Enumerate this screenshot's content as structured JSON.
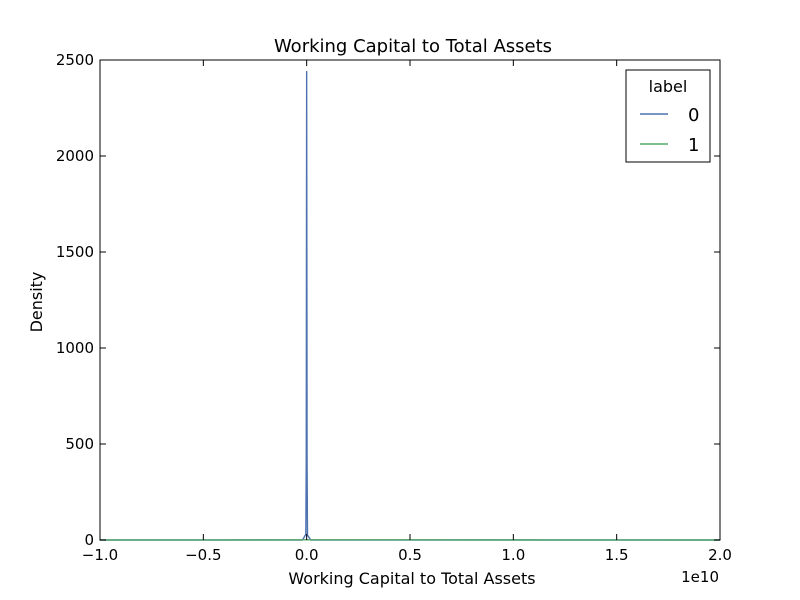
{
  "chart_data": {
    "type": "line",
    "title": "Working Capital to Total Assets",
    "xlabel": "Working Capital to Total Assets",
    "ylabel": "Density",
    "x_offset_text": "1e10",
    "xlim": [
      -1.0,
      2.0
    ],
    "ylim": [
      0,
      2500
    ],
    "xticks": [
      -1.0,
      -0.5,
      0.0,
      0.5,
      1.0,
      1.5,
      2.0
    ],
    "xtick_labels": [
      "−1.0",
      "−0.5",
      "0.0",
      "0.5",
      "1.0",
      "1.5",
      "2.0"
    ],
    "yticks": [
      0,
      500,
      1000,
      1500,
      2000,
      2500
    ],
    "ytick_labels": [
      "0",
      "500",
      "1000",
      "1500",
      "2000",
      "2500"
    ],
    "grid": false,
    "legend": {
      "title": "label",
      "placement": "top-right"
    },
    "series": [
      {
        "name": "0",
        "color": "#4c72b0",
        "points": [
          [
            -1.0,
            0
          ],
          [
            -0.02,
            0
          ],
          [
            -0.004,
            30
          ],
          [
            -0.002,
            420
          ],
          [
            0.0,
            2440
          ],
          [
            0.002,
            380
          ],
          [
            0.004,
            25
          ],
          [
            0.02,
            0
          ],
          [
            2.0,
            0
          ]
        ]
      },
      {
        "name": "1",
        "color": "#55a868",
        "points": [
          [
            -1.0,
            0
          ],
          [
            -0.5,
            0.3
          ],
          [
            0.0,
            1.0
          ],
          [
            0.5,
            0.9
          ],
          [
            1.0,
            0.7
          ],
          [
            1.25,
            0.4
          ],
          [
            1.5,
            0.1
          ],
          [
            2.0,
            0
          ]
        ]
      }
    ]
  }
}
